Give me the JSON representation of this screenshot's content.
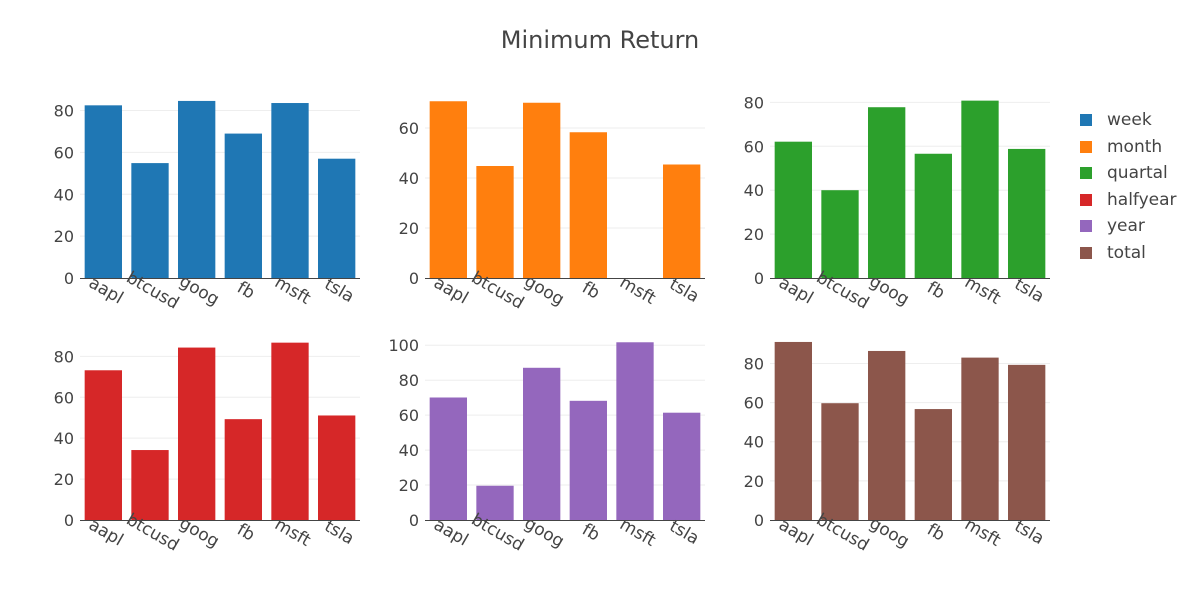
{
  "chart_data": {
    "title": "Minimum Return",
    "type": "bar",
    "categories": [
      "aapl",
      "btcusd",
      "goog",
      "fb",
      "msft",
      "tsla"
    ],
    "series": [
      {
        "name": "week",
        "color": "#1f77b4",
        "values": [
          82.5,
          54.9,
          84.6,
          69.0,
          83.6,
          57.0
        ],
        "ylim": [
          0,
          86
        ],
        "yticks": [
          0,
          20,
          40,
          60,
          80
        ]
      },
      {
        "name": "month",
        "color": "#ff7f0e",
        "values": [
          70.7,
          44.8,
          70.1,
          58.3,
          0,
          45.4
        ],
        "ylim": [
          0,
          72
        ],
        "yticks": [
          0,
          20,
          40,
          60
        ]
      },
      {
        "name": "quartal",
        "color": "#2ca02c",
        "values": [
          62.1,
          40.0,
          77.8,
          56.6,
          80.8,
          58.8
        ],
        "ylim": [
          0,
          82
        ],
        "yticks": [
          0,
          20,
          40,
          60,
          80
        ]
      },
      {
        "name": "halfyear",
        "color": "#d62728",
        "values": [
          73.2,
          34.2,
          84.3,
          49.3,
          86.7,
          51.1
        ],
        "ylim": [
          0,
          88
        ],
        "yticks": [
          0,
          20,
          40,
          60,
          80
        ]
      },
      {
        "name": "year",
        "color": "#9467bd",
        "values": [
          70.1,
          19.6,
          87.1,
          68.2,
          101.7,
          61.4
        ],
        "ylim": [
          0,
          103
        ],
        "yticks": [
          0,
          20,
          40,
          60,
          80,
          100
        ]
      },
      {
        "name": "total",
        "color": "#8c564b",
        "values": [
          91.0,
          59.7,
          86.4,
          56.7,
          83.0,
          79.3
        ],
        "ylim": [
          0,
          92
        ],
        "yticks": [
          0,
          20,
          40,
          60,
          80
        ]
      }
    ],
    "legend_position": "right"
  }
}
